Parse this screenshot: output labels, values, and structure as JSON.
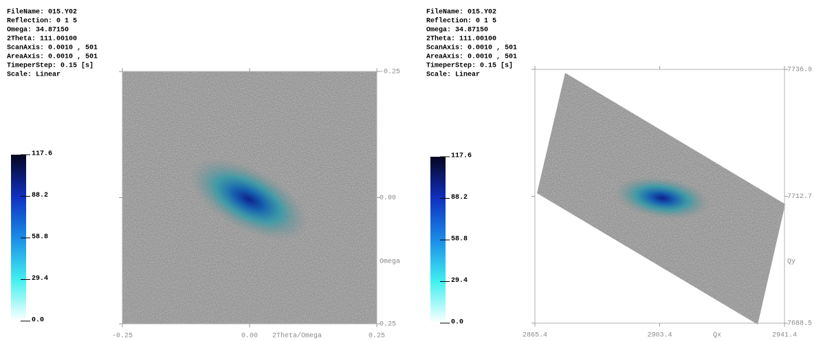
{
  "chart_data": [
    {
      "type": "heatmap",
      "info": [
        "FileName: 015.Y02",
        "Reflection: 0 1 5",
        "Omega: 34.87150",
        "2Theta: 111.00100",
        "ScanAxis: 0.0010 , 501",
        "AreaAxis: 0.0010 , 501",
        "TimeperStep: 0.15 [s]",
        "Scale: Linear"
      ],
      "xlabel": "2Theta/Omega",
      "ylabel": "Omega",
      "xlim": [
        -0.25,
        0.25
      ],
      "xticks": [
        {
          "value": -0.25,
          "label": "-0.25"
        },
        {
          "value": 0,
          "label": "0.00"
        },
        {
          "value": 0.25,
          "label": "0.25"
        }
      ],
      "ylim": [
        0.25,
        -0.25
      ],
      "yticks": [
        {
          "value": -0.25,
          "label": "-0.25"
        },
        {
          "value": 0,
          "label": "0.00"
        },
        {
          "value": 0.25,
          "label": "0.25"
        }
      ],
      "colorbar": {
        "lim": [
          0,
          117.6
        ],
        "ticks": [
          {
            "value": 0,
            "label": "0.0"
          },
          29.4,
          58.8,
          88.2,
          117.6
        ]
      }
    },
    {
      "type": "heatmap",
      "info": [
        "FileName: 015.Y02",
        "Reflection: 0 1 5",
        "Omega: 34.87150",
        "2Theta: 111.00100",
        "ScanAxis: 0.0010 , 501",
        "AreaAxis: 0.0010 , 501",
        "TimeperStep: 0.15 [s]",
        "Scale: Linear"
      ],
      "xlabel": "Qx",
      "ylabel": "Qy",
      "xlim": [
        2865.4,
        2941.4
      ],
      "xticks": [
        2865.4,
        2903.4,
        2941.4
      ],
      "ylim": [
        7688.5,
        7736.9
      ],
      "yticks": [
        7688.5,
        7712.7,
        7736.9
      ],
      "colorbar": {
        "lim": [
          0,
          117.6
        ],
        "ticks": [
          {
            "value": 0,
            "label": "0.0"
          },
          29.4,
          58.8,
          88.2,
          117.6
        ]
      }
    }
  ]
}
